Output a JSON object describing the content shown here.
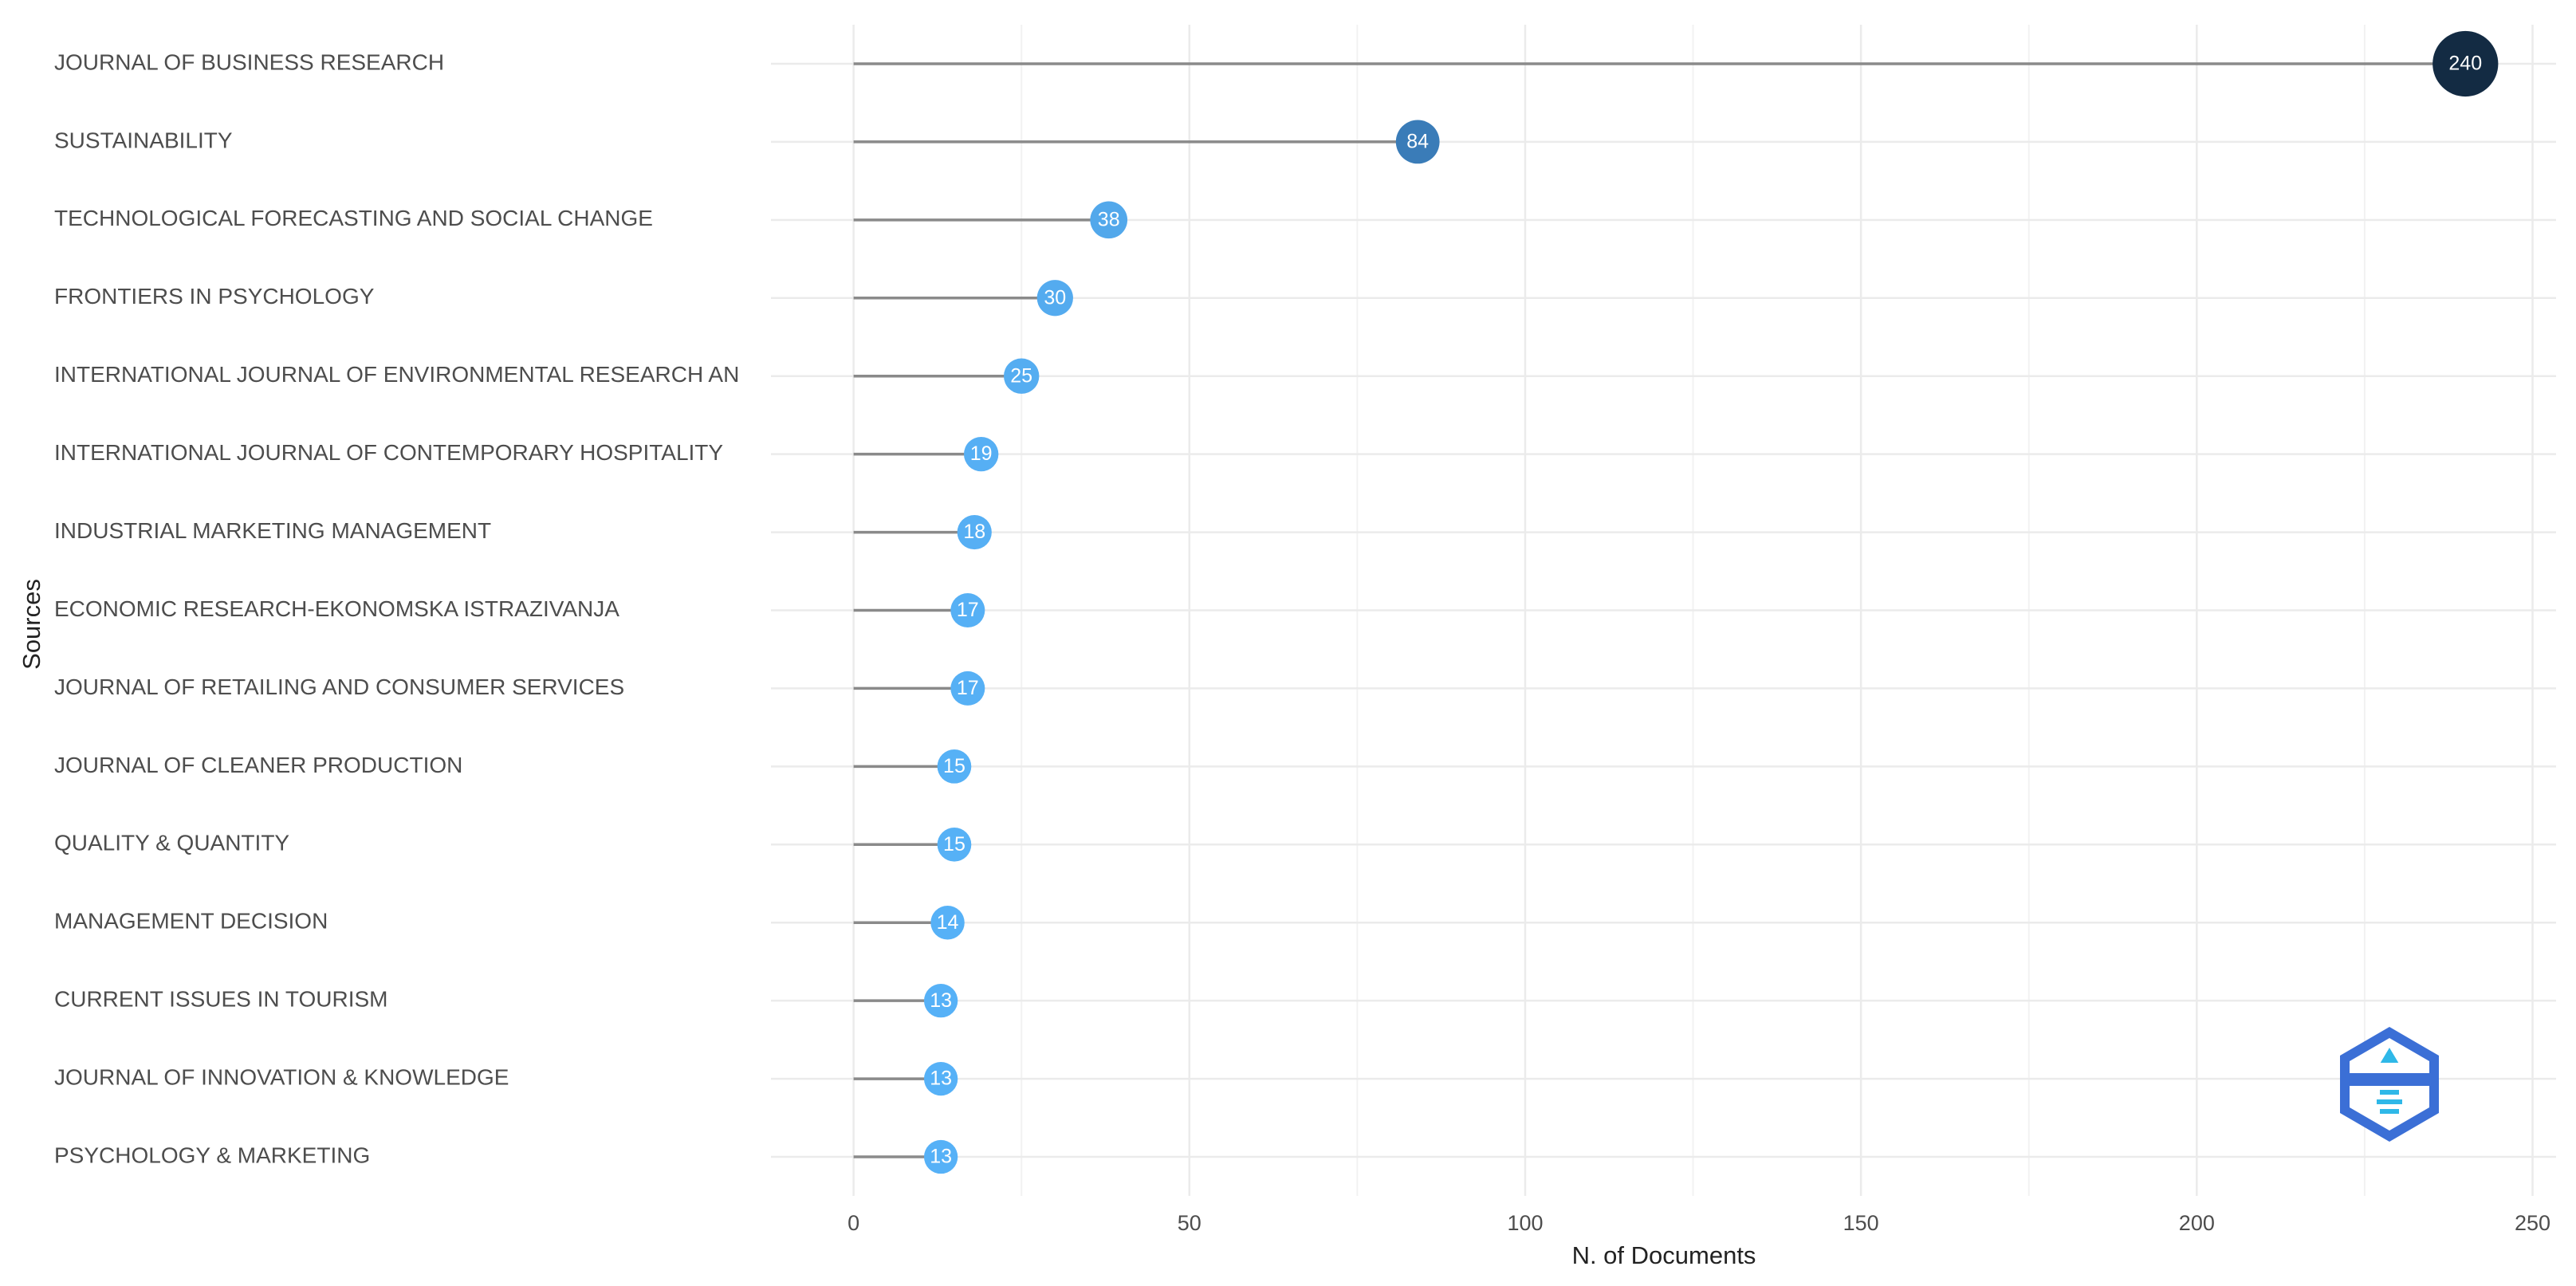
{
  "chart_data": {
    "type": "lollipop",
    "x_label": "N. of Documents",
    "y_label": "Sources",
    "categories": [
      "JOURNAL OF BUSINESS RESEARCH",
      "SUSTAINABILITY",
      "TECHNOLOGICAL FORECASTING AND SOCIAL CHANGE",
      "FRONTIERS IN PSYCHOLOGY",
      "INTERNATIONAL JOURNAL OF ENVIRONMENTAL RESEARCH AN",
      "INTERNATIONAL JOURNAL OF CONTEMPORARY HOSPITALITY",
      "INDUSTRIAL MARKETING MANAGEMENT",
      "ECONOMIC RESEARCH-EKONOMSKA ISTRAZIVANJA",
      "JOURNAL OF RETAILING AND CONSUMER SERVICES",
      "JOURNAL OF CLEANER PRODUCTION",
      "QUALITY & QUANTITY",
      "MANAGEMENT DECISION",
      "CURRENT ISSUES IN TOURISM",
      "JOURNAL OF INNOVATION & KNOWLEDGE",
      "PSYCHOLOGY & MARKETING"
    ],
    "values": [
      240,
      84,
      38,
      30,
      25,
      19,
      18,
      17,
      17,
      15,
      15,
      14,
      13,
      13,
      13
    ],
    "colors": [
      "#132b43",
      "#3a7cb8",
      "#52a8eb",
      "#54abef",
      "#55adf1",
      "#56aff4",
      "#56aff4",
      "#56b0f5",
      "#56b0f5",
      "#56b1f6",
      "#56b1f6",
      "#56b1f7",
      "#56b1f7",
      "#56b1f7",
      "#56b1f7"
    ],
    "xlim": [
      -12.3,
      253.5
    ],
    "xticks": [
      0,
      50,
      100,
      150,
      200,
      250
    ],
    "grid": true
  }
}
